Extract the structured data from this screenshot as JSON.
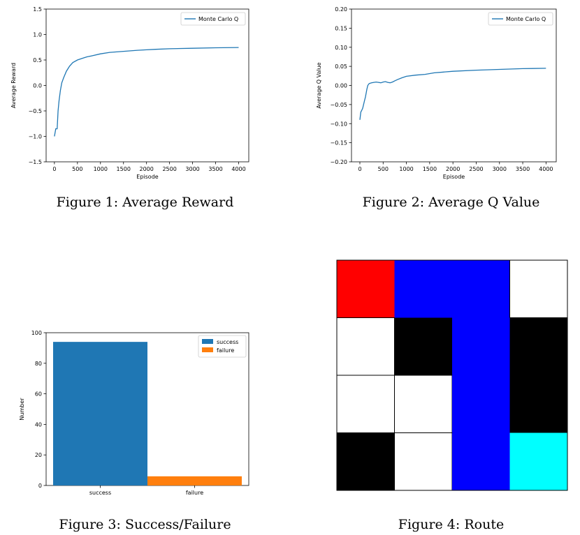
{
  "figure1": {
    "caption": "Figure 1: Average Reward",
    "chart_data": {
      "type": "line",
      "xlabel": "Episode",
      "ylabel": "Average Reward",
      "xlim": [
        -180,
        4220
      ],
      "ylim": [
        -1.5,
        1.5
      ],
      "xticks": [
        0,
        500,
        1000,
        1500,
        2000,
        2500,
        3000,
        3500,
        4000
      ],
      "yticks": [
        -1.5,
        -1.0,
        -0.5,
        0.0,
        0.5,
        1.0,
        1.5
      ],
      "legend": "top-right",
      "series": [
        {
          "name": "Monte Carlo Q",
          "color": "#1f77b4",
          "x": [
            0,
            30,
            60,
            80,
            100,
            130,
            160,
            200,
            260,
            330,
            400,
            500,
            600,
            700,
            800,
            1000,
            1200,
            1500,
            1800,
            2000,
            2200,
            2500,
            3000,
            3500,
            4000
          ],
          "y": [
            -1.0,
            -0.85,
            -0.85,
            -0.5,
            -0.3,
            -0.1,
            0.05,
            0.15,
            0.28,
            0.38,
            0.45,
            0.5,
            0.53,
            0.56,
            0.58,
            0.62,
            0.65,
            0.67,
            0.69,
            0.7,
            0.71,
            0.72,
            0.73,
            0.74,
            0.745
          ]
        }
      ]
    }
  },
  "figure2": {
    "caption": "Figure 2: Average Q Value",
    "chart_data": {
      "type": "line",
      "xlabel": "Episode",
      "ylabel": "Average Q Value",
      "xlim": [
        -180,
        4220
      ],
      "ylim": [
        -0.2,
        0.2
      ],
      "xticks": [
        0,
        500,
        1000,
        1500,
        2000,
        2500,
        3000,
        3500,
        4000
      ],
      "yticks": [
        -0.2,
        -0.15,
        -0.1,
        -0.05,
        0.0,
        0.05,
        0.1,
        0.15,
        0.2
      ],
      "legend": "top-right",
      "series": [
        {
          "name": "Monte Carlo Q",
          "color": "#1f77b4",
          "x": [
            0,
            20,
            40,
            60,
            80,
            100,
            120,
            150,
            170,
            200,
            250,
            300,
            350,
            400,
            450,
            500,
            550,
            600,
            650,
            700,
            750,
            800,
            900,
            1000,
            1200,
            1400,
            1500,
            1600,
            1800,
            2000,
            2500,
            3000,
            3500,
            4000
          ],
          "y": [
            -0.09,
            -0.07,
            -0.065,
            -0.06,
            -0.05,
            -0.04,
            -0.03,
            -0.01,
            0.0,
            0.005,
            0.007,
            0.008,
            0.009,
            0.008,
            0.007,
            0.009,
            0.01,
            0.008,
            0.007,
            0.009,
            0.012,
            0.015,
            0.02,
            0.024,
            0.027,
            0.029,
            0.031,
            0.033,
            0.035,
            0.037,
            0.04,
            0.042,
            0.044,
            0.045
          ]
        }
      ]
    }
  },
  "figure3": {
    "caption": "Figure 3: Success/Failure",
    "chart_data": {
      "type": "bar",
      "categories": [
        "success",
        "failure"
      ],
      "values": [
        94,
        6
      ],
      "colors": [
        "#1f77b4",
        "#ff7f0e"
      ],
      "ylabel": "Number",
      "xlabel": "",
      "ylim": [
        0,
        100
      ],
      "yticks": [
        0,
        20,
        40,
        60,
        80,
        100
      ],
      "legend": "top-right",
      "legend_entries": [
        "success",
        "failure"
      ]
    }
  },
  "figure4": {
    "caption": "Figure 4: Route",
    "grid": {
      "rows": 4,
      "cols": 4,
      "cells": [
        [
          "#ff0000",
          "#0000ff",
          "#0000ff",
          "#ffffff"
        ],
        [
          "#ffffff",
          "#000000",
          "#0000ff",
          "#000000"
        ],
        [
          "#ffffff",
          "#ffffff",
          "#0000ff",
          "#000000"
        ],
        [
          "#000000",
          "#ffffff",
          "#0000ff",
          "#00ffff"
        ]
      ]
    }
  }
}
